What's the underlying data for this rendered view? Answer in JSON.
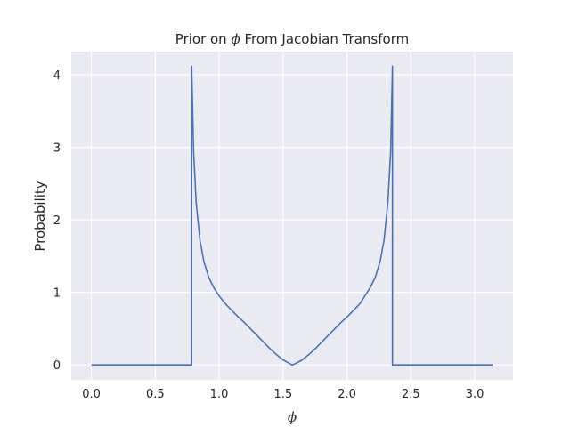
{
  "chart_data": {
    "type": "line",
    "title": {
      "prefix": "Prior on ",
      "symbol": "ϕ",
      "suffix": " From Jacobian Transform"
    },
    "xlabel": "ϕ",
    "ylabel": "Probability",
    "xlim": [
      -0.157,
      3.299
    ],
    "ylim": [
      -0.206,
      4.32
    ],
    "xticks": [
      0.0,
      0.5,
      1.0,
      1.5,
      2.0,
      2.5,
      3.0
    ],
    "xtick_labels": [
      "0.0",
      "0.5",
      "1.0",
      "1.5",
      "2.0",
      "2.5",
      "3.0"
    ],
    "yticks": [
      0,
      1,
      2,
      3,
      4
    ],
    "ytick_labels": [
      "0",
      "1",
      "2",
      "3",
      "4"
    ],
    "grid": true,
    "legend": "none",
    "series": [
      {
        "color": "#4c72b0",
        "x": [
          0.0,
          0.785,
          0.785,
          0.8,
          0.82,
          0.85,
          0.88,
          0.92,
          0.96,
          1.0,
          1.05,
          1.1,
          1.15,
          1.2,
          1.25,
          1.3,
          1.35,
          1.4,
          1.45,
          1.5,
          1.55,
          1.5708,
          1.6,
          1.65,
          1.7,
          1.75,
          1.8,
          1.85,
          1.9,
          1.95,
          2.0,
          2.05,
          2.1,
          2.14,
          2.18,
          2.22,
          2.26,
          2.29,
          2.32,
          2.342,
          2.356,
          2.356,
          3.1416
        ],
        "y": [
          0.0,
          0.0,
          4.12,
          2.95,
          2.24,
          1.72,
          1.43,
          1.2,
          1.06,
          0.95,
          0.84,
          0.75,
          0.66,
          0.58,
          0.49,
          0.4,
          0.31,
          0.22,
          0.14,
          0.07,
          0.02,
          0.0,
          0.02,
          0.07,
          0.14,
          0.22,
          0.31,
          0.4,
          0.49,
          0.58,
          0.66,
          0.75,
          0.84,
          0.95,
          1.06,
          1.2,
          1.43,
          1.72,
          2.24,
          2.95,
          4.12,
          0.0,
          0.0
        ]
      }
    ]
  }
}
